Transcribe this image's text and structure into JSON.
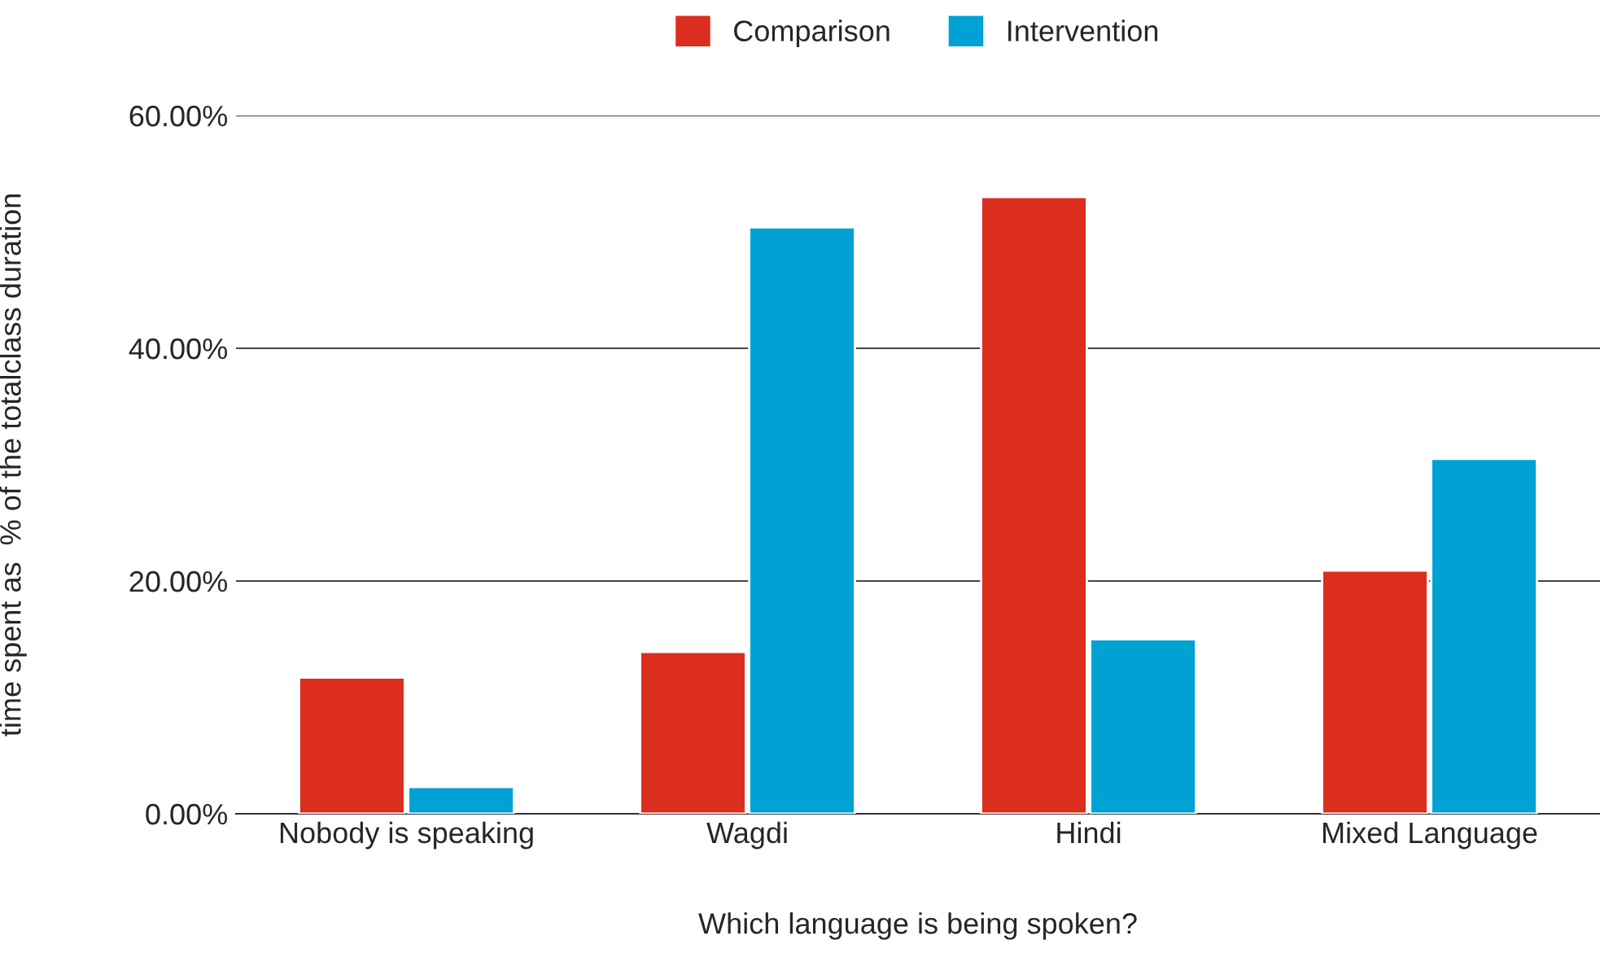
{
  "chart_data": {
    "type": "bar",
    "xlabel": "Which language is being spoken?",
    "ylabel": "time spent as  % of the totalclass duration",
    "categories": [
      "Nobody is speaking",
      "Wagdi",
      "Hindi",
      "Mixed Language"
    ],
    "series": [
      {
        "name": "Comparison",
        "color": "#dc2e1f",
        "values": [
          11.7,
          13.9,
          53.0,
          20.9
        ]
      },
      {
        "name": "Intervention",
        "color": "#00a2d3",
        "values": [
          2.3,
          50.4,
          15.0,
          30.5
        ]
      }
    ],
    "ylim": [
      0,
      60
    ],
    "yticks": [
      {
        "value": 0,
        "label": "0.00%"
      },
      {
        "value": 20,
        "label": "20.00%"
      },
      {
        "value": 40,
        "label": "40.00%"
      },
      {
        "value": 60,
        "label": "60.00%"
      }
    ],
    "grid": "y",
    "legend": "top"
  }
}
